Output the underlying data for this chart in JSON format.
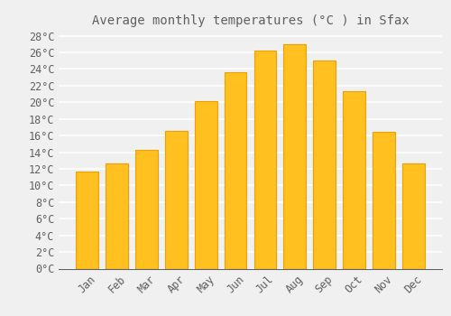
{
  "title": "Average monthly temperatures (°C ) in Sfax",
  "months": [
    "Jan",
    "Feb",
    "Mar",
    "Apr",
    "May",
    "Jun",
    "Jul",
    "Aug",
    "Sep",
    "Oct",
    "Nov",
    "Dec"
  ],
  "temperatures": [
    11.7,
    12.6,
    14.3,
    16.6,
    20.1,
    23.6,
    26.2,
    27.0,
    25.0,
    21.3,
    16.4,
    12.6
  ],
  "bar_color": "#FFC020",
  "bar_edge_color": "#F0A000",
  "background_color": "#F0F0F0",
  "grid_color": "#FFFFFF",
  "text_color": "#606060",
  "ylim": [
    0,
    28.5
  ],
  "yticks": [
    0,
    2,
    4,
    6,
    8,
    10,
    12,
    14,
    16,
    18,
    20,
    22,
    24,
    26,
    28
  ],
  "title_fontsize": 10,
  "tick_fontsize": 8.5
}
